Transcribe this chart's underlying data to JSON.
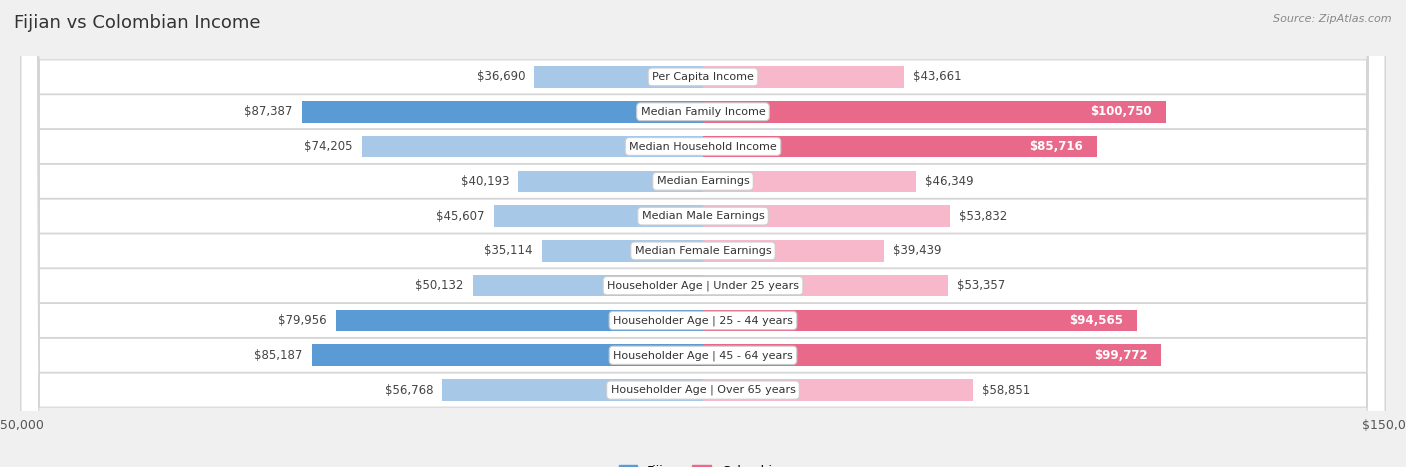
{
  "title": "Fijian vs Colombian Income",
  "source": "Source: ZipAtlas.com",
  "categories": [
    "Per Capita Income",
    "Median Family Income",
    "Median Household Income",
    "Median Earnings",
    "Median Male Earnings",
    "Median Female Earnings",
    "Householder Age | Under 25 years",
    "Householder Age | 25 - 44 years",
    "Householder Age | 45 - 64 years",
    "Householder Age | Over 65 years"
  ],
  "fijian_values": [
    36690,
    87387,
    74205,
    40193,
    45607,
    35114,
    50132,
    79956,
    85187,
    56768
  ],
  "colombian_values": [
    43661,
    100750,
    85716,
    46349,
    53832,
    39439,
    53357,
    94565,
    99772,
    58851
  ],
  "fijian_labels": [
    "$36,690",
    "$87,387",
    "$74,205",
    "$40,193",
    "$45,607",
    "$35,114",
    "$50,132",
    "$79,956",
    "$85,187",
    "$56,768"
  ],
  "colombian_labels": [
    "$43,661",
    "$100,750",
    "$85,716",
    "$46,349",
    "$53,832",
    "$39,439",
    "$53,357",
    "$94,565",
    "$99,772",
    "$58,851"
  ],
  "fijian_color_light": "#A8C8E8",
  "fijian_color_dark": "#5B9BD5",
  "colombian_color_light": "#F8B8CC",
  "colombian_color_dark": "#E8698A",
  "max_value": 150000,
  "background_color": "#f0f0f0",
  "title_fontsize": 13,
  "label_fontsize": 8.5,
  "cat_fontsize": 8.0,
  "axis_label_fontsize": 9,
  "high_value_threshold_fijian": 75000,
  "high_value_threshold_colombian": 85000
}
